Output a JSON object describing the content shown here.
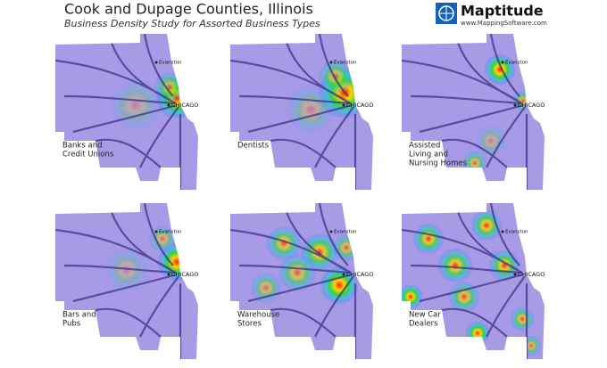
{
  "header": {
    "title": "Cook and Dupage Counties, Illinois",
    "subtitle": "Business Density Study for Assorted Business Types"
  },
  "brand": {
    "name": "Maptitude",
    "url": "www.MappingSoftware.com"
  },
  "panels": [
    {
      "label": [
        "Banks and",
        "Credit Unions"
      ],
      "cities": [
        "CHICAGO",
        "Evanston"
      ]
    },
    {
      "label": [
        "Dentists"
      ],
      "cities": [
        "CHICAGO",
        "Evanston"
      ]
    },
    {
      "label": [
        "Assisted",
        "Living and",
        "Nursing Homes"
      ],
      "cities": [
        "CHICAGO",
        "Evanston"
      ]
    },
    {
      "label": [
        "Bars and",
        "Pubs"
      ],
      "cities": [
        "CHICAGO",
        "Evanston"
      ]
    },
    {
      "label": [
        "Warehouse",
        "Stores"
      ],
      "cities": [
        "CHICAGO",
        "Evanston"
      ]
    },
    {
      "label": [
        "New Car",
        "Dealers"
      ],
      "cities": [
        "CHICAGO",
        "Evanston"
      ]
    }
  ]
}
